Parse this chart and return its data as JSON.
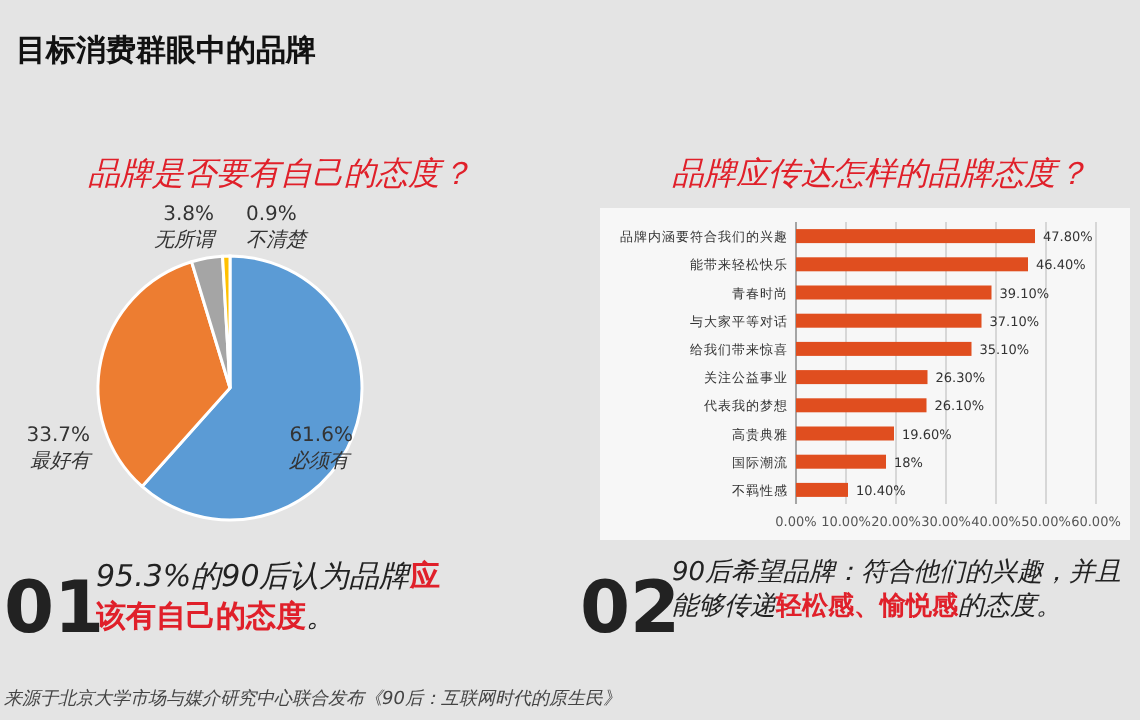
{
  "chart_data": [
    {
      "type": "other",
      "title": "目标消费群眼中的品牌"
    },
    {
      "type": "pie",
      "title": "品牌是否要有自己的态度？",
      "categories": [
        "必须有",
        "最好有",
        "无所谓",
        "不清楚"
      ],
      "values": [
        61.6,
        33.7,
        3.8,
        0.9
      ],
      "colors": [
        "#5b9bd5",
        "#ed7d31",
        "#a5a5a5",
        "#ffc000"
      ],
      "value_labels": [
        "61.6%",
        "33.7%",
        "3.8%",
        "0.9%"
      ]
    },
    {
      "type": "bar",
      "orientation": "horizontal",
      "title": "品牌应传达怎样的品牌态度？",
      "categories": [
        "品牌内涵要符合我们的兴趣",
        "能带来轻松快乐",
        "青春时尚",
        "与大家平等对话",
        "给我们带来惊喜",
        "关注公益事业",
        "代表我的梦想",
        "高贵典雅",
        "国际潮流",
        "不羁性感"
      ],
      "values": [
        47.8,
        46.4,
        39.1,
        37.1,
        35.1,
        26.3,
        26.1,
        19.6,
        18,
        10.4
      ],
      "value_labels": [
        "47.80%",
        "46.40%",
        "39.10%",
        "37.10%",
        "35.10%",
        "26.30%",
        "26.10%",
        "19.60%",
        "18%",
        "10.40%"
      ],
      "color": "#e04e1f",
      "xlim": [
        0,
        60
      ],
      "xticks": [
        {
          "value": 0,
          "label": "0.00%"
        },
        {
          "value": 10,
          "label": "10.00%"
        },
        {
          "value": 20,
          "label": "20.00%"
        },
        {
          "value": 30,
          "label": "30.00%"
        },
        {
          "value": 40,
          "label": "40.00%"
        },
        {
          "value": 50,
          "label": "50.00%"
        },
        {
          "value": 60,
          "label": "60.00%"
        }
      ],
      "grid": "x"
    },
    {
      "type": "other",
      "title": "01",
      "annotations": [
        "95.3%的90后认为品牌",
        "应该有自己的态度",
        "。"
      ]
    },
    {
      "type": "other",
      "title": "02",
      "annotations": [
        "90后希望品牌：符合他们的兴趣，并且能够传递",
        "轻松感、愉悦感",
        "的态度。"
      ]
    },
    {
      "type": "other",
      "annotations": [
        "来源于北京大学市场与媒介研究中心联合发布《90后：互联网时代的原生民》"
      ]
    }
  ]
}
